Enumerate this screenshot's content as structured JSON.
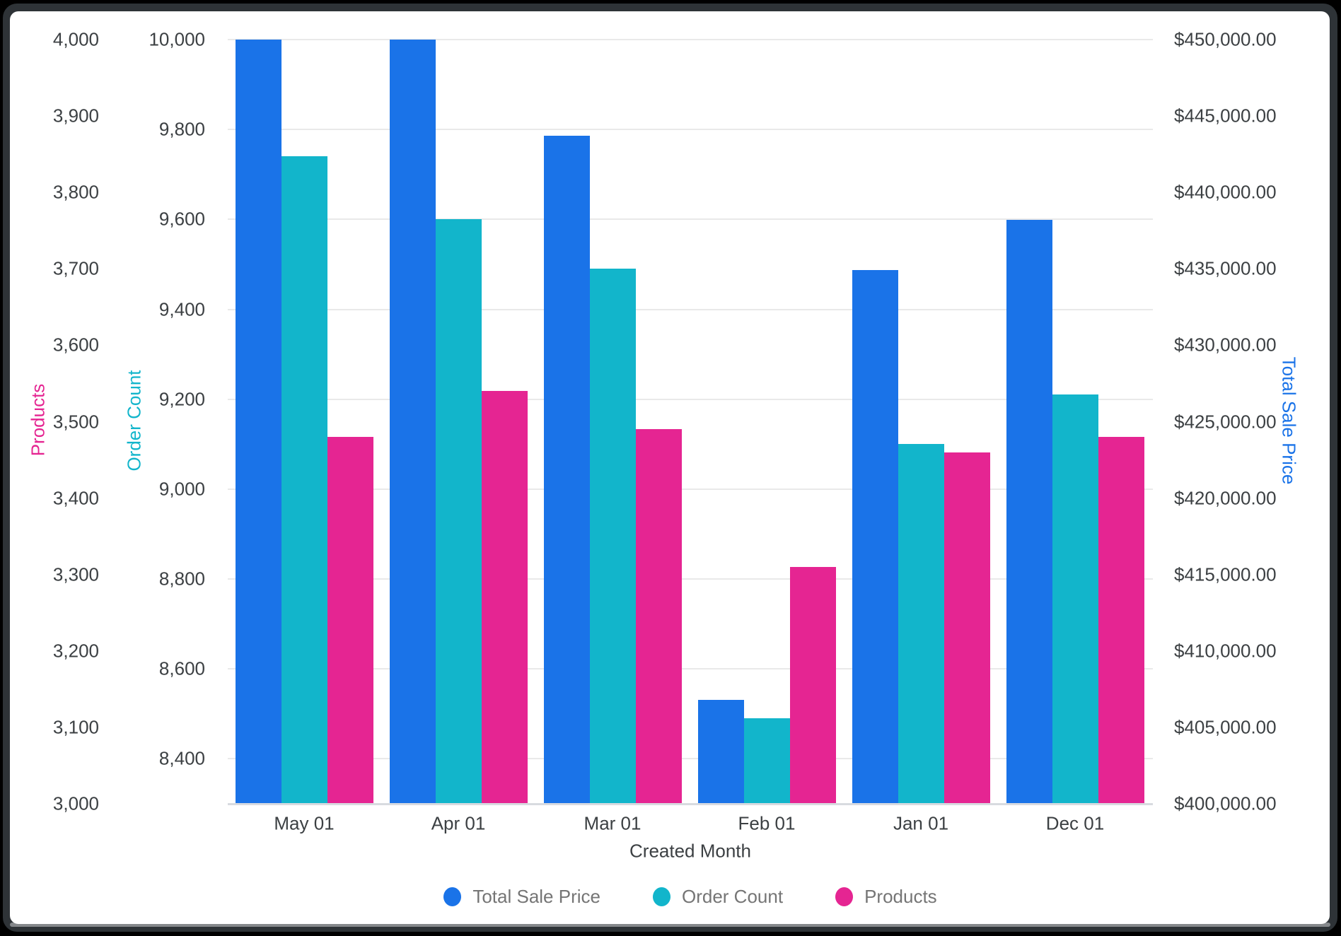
{
  "chart_data": {
    "type": "bar",
    "title": "",
    "xlabel": "Created Month",
    "categories": [
      "May 01",
      "Apr 01",
      "Mar 01",
      "Feb 01",
      "Jan 01",
      "Dec 01"
    ],
    "series": [
      {
        "name": "Total Sale Price",
        "axis": "sale",
        "color": "#1a73e8",
        "values": [
          450000,
          450000,
          443700,
          406800,
          434900,
          438200
        ]
      },
      {
        "name": "Order Count",
        "axis": "order",
        "color": "#12b5cb",
        "values": [
          9740,
          9600,
          9490,
          8490,
          9100,
          9210
        ]
      },
      {
        "name": "Products",
        "axis": "products",
        "color": "#e52592",
        "values": [
          3480,
          3540,
          3490,
          3310,
          3460,
          3480
        ]
      }
    ],
    "axes": {
      "products": {
        "title": "Products",
        "side": "left-outer",
        "color": "#e52592",
        "min": 3000,
        "max": 4000,
        "tick_values": [
          4000,
          3900,
          3800,
          3700,
          3600,
          3500,
          3400,
          3300,
          3200,
          3100,
          3000
        ],
        "tick_labels": [
          "4,000",
          "3,900",
          "3,800",
          "3,700",
          "3,600",
          "3,500",
          "3,400",
          "3,300",
          "3,200",
          "3,100",
          "3,000"
        ]
      },
      "order": {
        "title": "Order Count",
        "side": "left-inner",
        "color": "#12b5cb",
        "min": 8300,
        "max": 10000,
        "tick_values": [
          10000,
          9800,
          9600,
          9400,
          9200,
          9000,
          8800,
          8600,
          8400
        ],
        "tick_labels": [
          "10,000",
          "9,800",
          "9,600",
          "9,400",
          "9,200",
          "9,000",
          "8,800",
          "8,600",
          "8,400"
        ]
      },
      "sale": {
        "title": "Total Sale Price",
        "side": "right",
        "color": "#1a73e8",
        "min": 400000,
        "max": 450000,
        "tick_values": [
          450000,
          445000,
          440000,
          435000,
          430000,
          425000,
          420000,
          415000,
          410000,
          405000,
          400000
        ],
        "tick_labels": [
          "$450,000.00",
          "$445,000.00",
          "$440,000.00",
          "$435,000.00",
          "$430,000.00",
          "$425,000.00",
          "$420,000.00",
          "$415,000.00",
          "$410,000.00",
          "$405,000.00",
          "$400,000.00"
        ]
      }
    },
    "legend": [
      "Total Sale Price",
      "Order Count",
      "Products"
    ],
    "legend_position": "bottom",
    "grid": "horizontal-on-order-axis-ticks",
    "style": {
      "gridline_color": "#e9e9e9",
      "baseline_color": "#d8dbe0",
      "tick_label_color": "#3c4043",
      "legend_text_color": "#757575",
      "frame_color": "#2e3337",
      "card_color": "#ffffff"
    }
  }
}
